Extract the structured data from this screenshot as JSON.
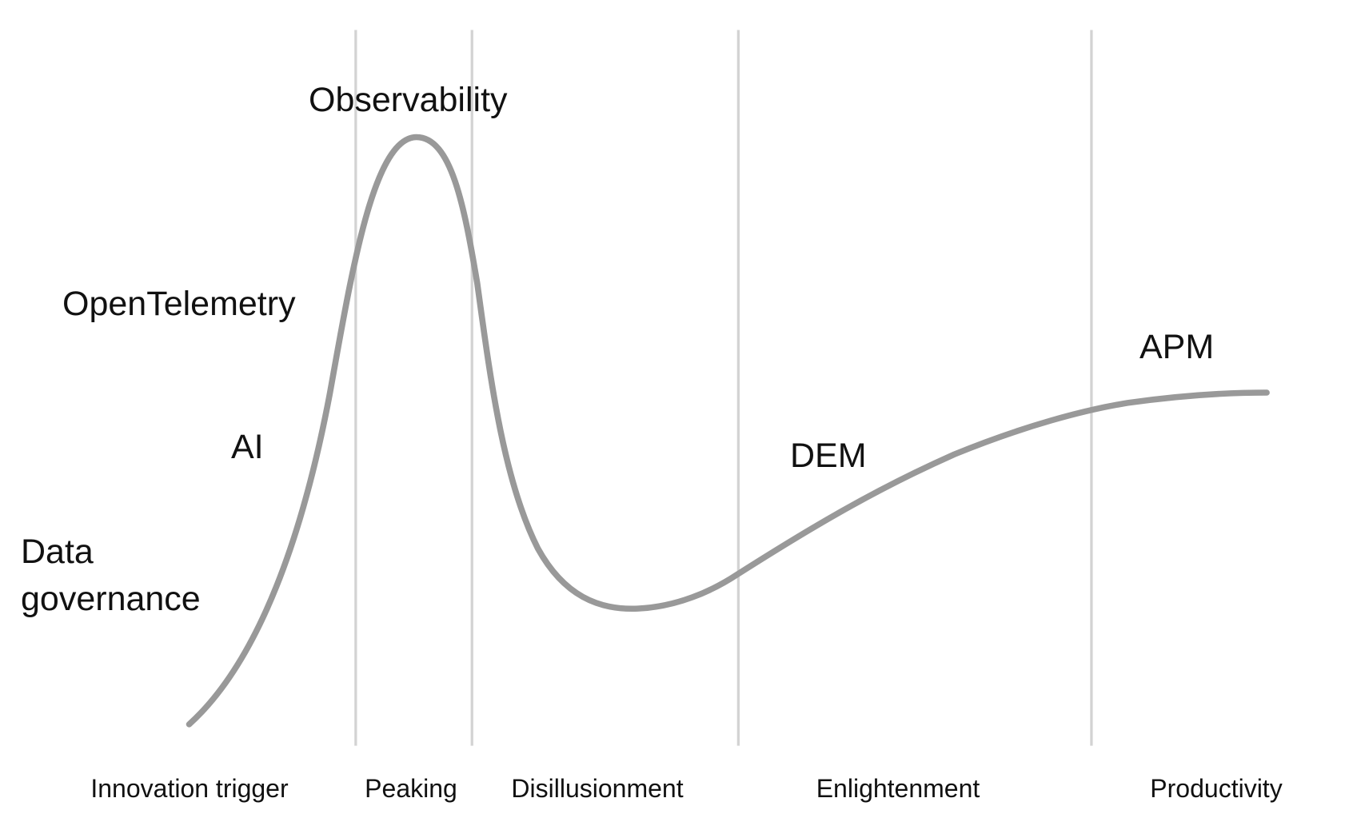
{
  "technologies": [
    {
      "label": "Observability"
    },
    {
      "label": "OpenTelemetry"
    },
    {
      "label": "AI"
    },
    {
      "label": "Data governance"
    },
    {
      "label": "DEM"
    },
    {
      "label": "APM"
    }
  ],
  "phases": [
    "Innovation trigger",
    "Peaking",
    "Disillusionment",
    "Enlightenment",
    "Productivity"
  ]
}
